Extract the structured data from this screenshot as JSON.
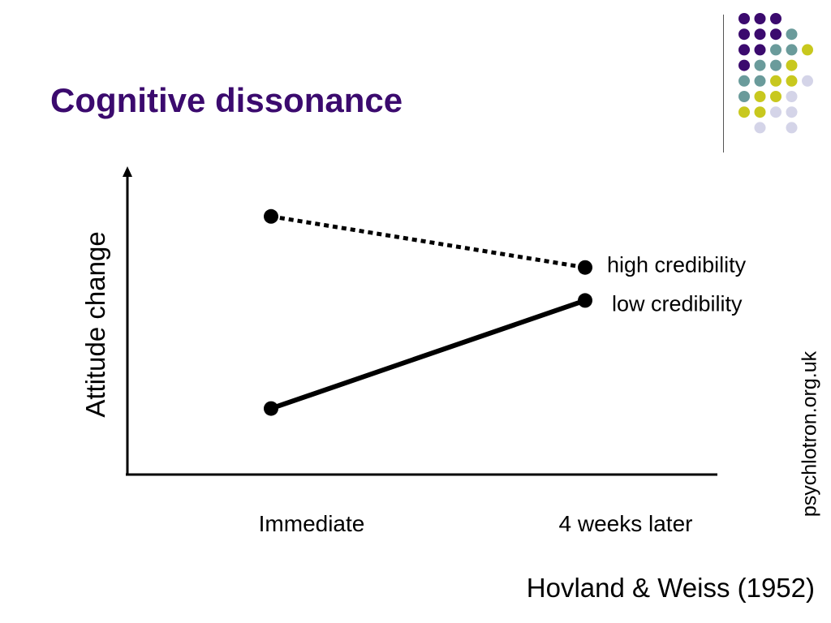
{
  "slide": {
    "title": "Cognitive dissonance",
    "citation": "Hovland & Weiss (1952)",
    "watermark": "psychlotron.org.uk",
    "title_color": "#3b0a6e",
    "decoration": {
      "name": "dot-grid",
      "rows": [
        [
          "purple",
          "purple",
          "purple",
          null,
          null
        ],
        [
          "purple",
          "purple",
          "purple",
          "teal",
          null
        ],
        [
          "purple",
          "purple",
          "teal",
          "teal",
          "olive"
        ],
        [
          "purple",
          "teal",
          "teal",
          "olive",
          null
        ],
        [
          "teal",
          "teal",
          "olive",
          "olive",
          "lavender"
        ],
        [
          "teal",
          "olive",
          "olive",
          "lavender",
          null
        ],
        [
          "olive",
          "olive",
          "lavender",
          "lavender",
          null
        ],
        [
          null,
          "lavender",
          null,
          "lavender",
          null
        ]
      ],
      "colors": {
        "purple": "#3b0a6e",
        "teal": "#6a9b9b",
        "olive": "#c8c81e",
        "lavender": "#d4d4e8"
      }
    }
  },
  "chart_data": {
    "type": "line",
    "title": "",
    "xlabel": "",
    "ylabel": "Attitude change",
    "categories": [
      "Immediate",
      "4 weeks later"
    ],
    "ylim": [
      0,
      10
    ],
    "grid": false,
    "series": [
      {
        "name": "high credibility",
        "values": [
          8.6,
          6.9
        ],
        "style": "dotted",
        "color": "#000000"
      },
      {
        "name": "low credibility",
        "values": [
          2.2,
          5.8
        ],
        "style": "solid",
        "color": "#000000"
      }
    ]
  }
}
